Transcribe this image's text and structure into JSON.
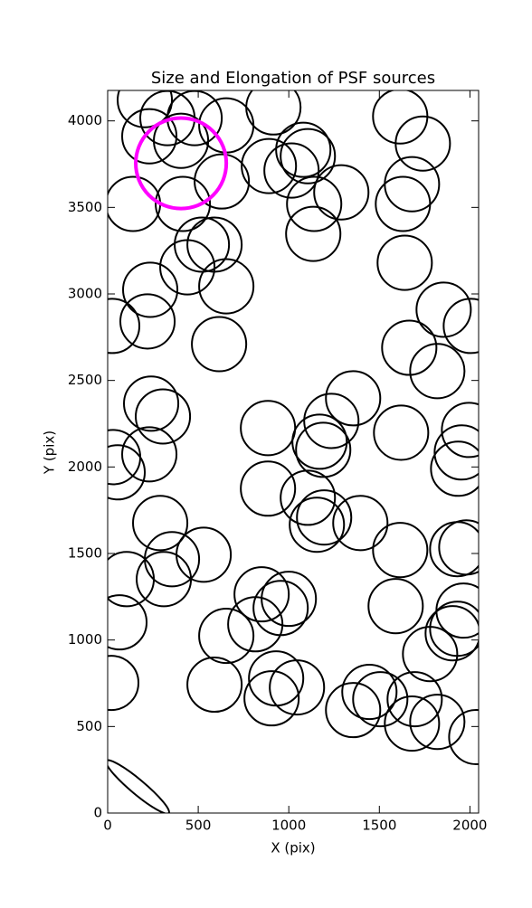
{
  "chart_data": {
    "type": "scatter",
    "title": "Size and Elongation of PSF sources",
    "xlabel": "X (pix)",
    "ylabel": "Y (pix)",
    "xlim": [
      0,
      2048
    ],
    "ylim": [
      0,
      4176
    ],
    "xticks": [
      0,
      500,
      1000,
      1500,
      2000
    ],
    "yticks": [
      0,
      500,
      1000,
      1500,
      2000,
      2500,
      3000,
      3500,
      4000
    ],
    "color": "#000000",
    "x": [
      205,
      230,
      330,
      405,
      480,
      655,
      915,
      140,
      630,
      415,
      890,
      1015,
      1080,
      1105,
      1140,
      1290,
      1135,
      1615,
      1740,
      1680,
      1630,
      1640,
      520,
      590,
      440,
      655,
      235,
      220,
      25,
      615,
      1855,
      2005,
      1665,
      1820,
      240,
      305,
      885,
      1235,
      1355,
      1170,
      1190,
      1620,
      1995,
      1955,
      1935,
      30,
      55,
      230,
      885,
      1105,
      1195,
      1155,
      1395,
      290,
      1615,
      1930,
      1980,
      105,
      355,
      530,
      310,
      850,
      1000,
      955,
      815,
      655,
      1590,
      1965,
      1930,
      1905,
      1780,
      65,
      20,
      590,
      930,
      905,
      1045,
      1355,
      1445,
      1505,
      1695,
      1680,
      1820,
      2035
    ],
    "y": [
      4120,
      3911,
      4016,
      3885,
      4016,
      3974,
      4078,
      3520,
      3650,
      3520,
      3739,
      3713,
      3833,
      3796,
      3520,
      3587,
      3347,
      4026,
      3869,
      3634,
      3520,
      3180,
      3285,
      3285,
      3154,
      3044,
      3024,
      2841,
      2815,
      2710,
      2909,
      2815,
      2689,
      2554,
      2366,
      2292,
      2225,
      2266,
      2397,
      2146,
      2099,
      2198,
      2214,
      2084,
      1990,
      2057,
      1969,
      2073,
      1875,
      1822,
      1708,
      1666,
      1676,
      1676,
      1520,
      1525,
      1535,
      1352,
      1467,
      1493,
      1352,
      1264,
      1238,
      1185,
      1091,
      1024,
      1196,
      1170,
      1065,
      1039,
      919,
      1102,
      752,
      742,
      778,
      663,
      726,
      595,
      700,
      658,
      658,
      517,
      527,
      439
    ],
    "sizes": [
      150,
      150,
      150,
      150,
      150,
      150,
      150,
      150,
      150,
      150,
      150,
      150,
      150,
      150,
      150,
      150,
      150,
      150,
      150,
      150,
      150,
      150,
      150,
      150,
      150,
      150,
      150,
      150,
      150,
      150,
      150,
      150,
      150,
      150,
      150,
      150,
      150,
      150,
      150,
      150,
      150,
      150,
      150,
      150,
      150,
      150,
      150,
      150,
      150,
      150,
      150,
      150,
      150,
      150,
      150,
      150,
      150,
      150,
      150,
      150,
      150,
      150,
      150,
      150,
      150,
      150,
      150,
      150,
      150,
      150,
      150,
      150,
      150,
      150,
      150,
      150,
      150,
      150,
      150,
      150,
      150,
      150,
      150,
      150
    ],
    "highlight": {
      "x": 405,
      "y": 3755,
      "size": 250,
      "color": "#ff00ff"
    },
    "reference": {
      "x": 165,
      "y": 151,
      "width": 225,
      "height": 40,
      "angle": -40,
      "color": "#000000"
    }
  }
}
